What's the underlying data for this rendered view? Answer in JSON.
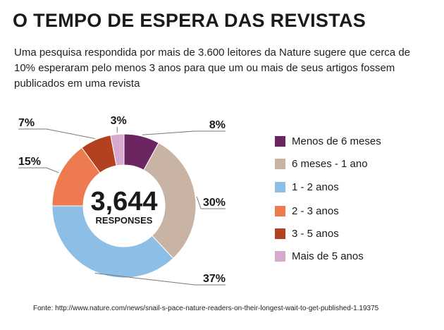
{
  "title": "O TEMPO DE ESPERA DAS REVISTAS",
  "subtitle": "Uma pesquisa respondida por mais de 3.600 leitores da Nature sugere que cerca de 10% esperaram pelo menos 3 anos para que um ou mais de seus artigos fossem publicados em uma revista",
  "source": "Fonte: http://www.nature.com/news/snail-s-pace-nature-readers-on-their-longest-wait-to-get-published-1.19375",
  "chart_data": {
    "type": "pie",
    "style": "donut",
    "center_value": "3,644",
    "center_label": "RESPONSES",
    "legend_position": "right",
    "categories": [
      "Menos de 6 meses",
      "6 meses - 1 ano",
      "1 - 2 anos",
      "2 - 3 anos",
      "3 - 5 anos",
      "Mais de 5 anos"
    ],
    "values": [
      8,
      30,
      37,
      15,
      7,
      3
    ],
    "value_labels": [
      "8%",
      "30%",
      "37%",
      "15%",
      "7%",
      "3%"
    ],
    "colors": [
      "#6b2560",
      "#c9b3a5",
      "#8dbfe6",
      "#ee7a50",
      "#b3401f",
      "#d8a9cf"
    ]
  }
}
